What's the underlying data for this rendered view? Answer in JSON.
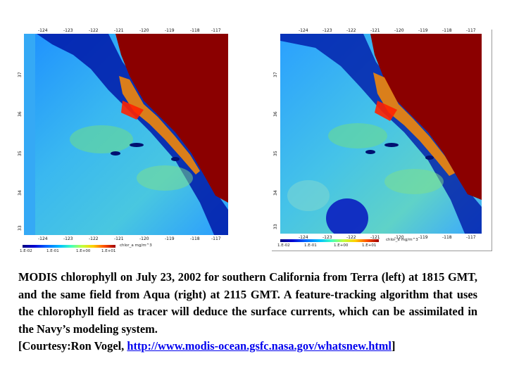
{
  "left_panel": {
    "lon_ticks_top": [
      "-124",
      "-123",
      "-122",
      "-121",
      "-120",
      "-119",
      "-118",
      "-117"
    ],
    "lon_ticks_bottom": [
      "-124",
      "-123",
      "-122",
      "-121",
      "-120",
      "-119",
      "-118",
      "-117"
    ],
    "lat_ticks": [
      "37",
      "36",
      "35",
      "34",
      "33"
    ],
    "colorbar_labels": [
      "1.E-02",
      "1.E-01",
      "1.E+00",
      "1.E+01"
    ],
    "colorbar_title": "chlor_a mg/m^3"
  },
  "right_panel": {
    "lon_ticks_top": [
      "-124",
      "-123",
      "-122",
      "-121",
      "-120",
      "-119",
      "-118",
      "-117"
    ],
    "lon_ticks_bottom": [
      "-124",
      "-123",
      "-122",
      "-121",
      "-120",
      "-119",
      "-118",
      "-117"
    ],
    "lat_ticks": [
      "37",
      "36",
      "35",
      "34",
      "33"
    ],
    "colorbar_labels": [
      "1.E-02",
      "1.E-01",
      "1.E+00",
      "1.E+01"
    ],
    "colorbar_title": "chlor_a mg/m^3"
  },
  "caption": {
    "text": "MODIS chlorophyll on July 23, 2002 for southern California from Terra (left) at 1815 GMT, and the same field from Aqua (right) at 2115 GMT.  A feature-tracking algorithm that uses the chlorophyll field as tracer will deduce the surface currents, which can be assimilated in the Navy’s modeling system.",
    "courtesy_prefix": "[Courtesy:Ron Vogel, ",
    "courtesy_link": "http://www.modis-ocean.gsfc.nasa.gov/whatsnew.html",
    "courtesy_suffix": "]"
  },
  "colors": {
    "land": "#8b0000",
    "ocean_low": "#0020b0",
    "ocean_mid": "#2aa8ff",
    "ocean_high": "#ffcc00",
    "bloom": "#ff3300"
  }
}
